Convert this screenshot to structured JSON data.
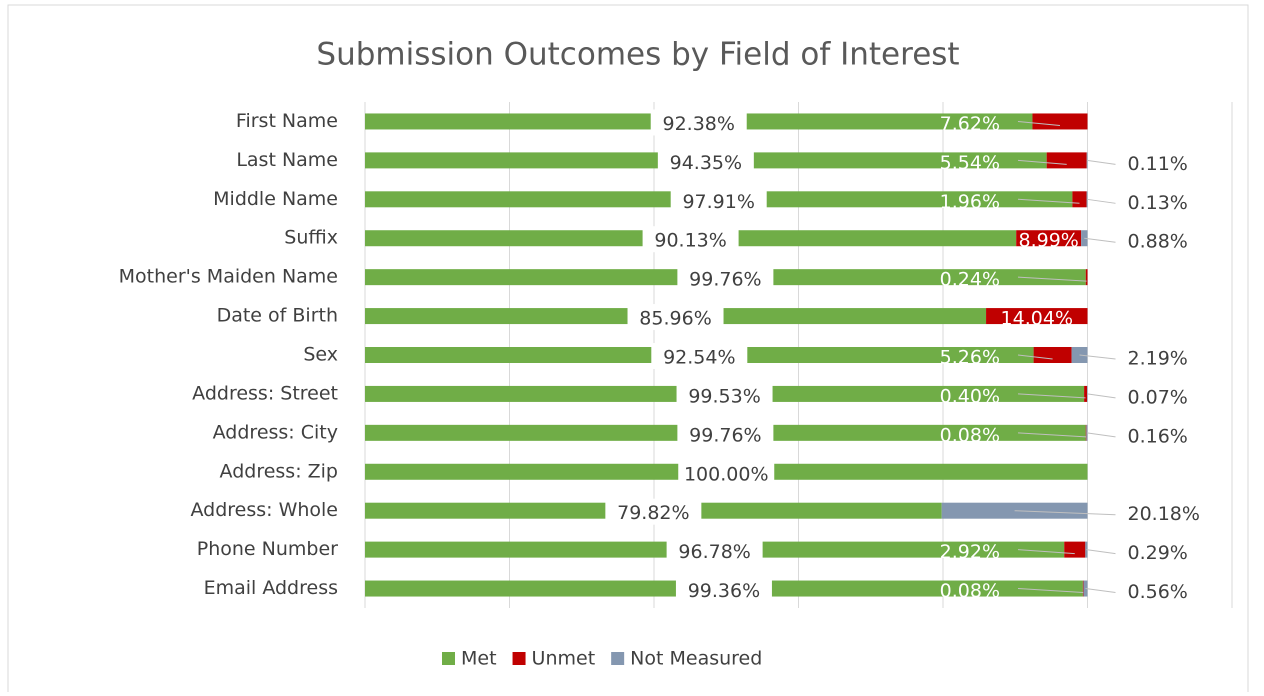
{
  "chart_data": {
    "type": "stacked_bar_horizontal",
    "title": "Submission Outcomes by Field of Interest",
    "categories": [
      "First Name",
      "Last Name",
      "Middle Name",
      "Suffix",
      "Mother's Maiden Name",
      "Date of Birth",
      "Sex",
      "Address: Street",
      "Address: City",
      "Address: Zip",
      "Address: Whole",
      "Phone Number",
      "Email Address"
    ],
    "series": [
      {
        "name": "Met",
        "color": "#70ad47",
        "values": [
          92.38,
          94.35,
          97.91,
          90.13,
          99.76,
          85.96,
          92.54,
          99.53,
          99.76,
          100,
          79.82,
          96.78,
          99.36
        ],
        "value_labels": [
          "92.38%",
          "94.35%",
          "97.91%",
          "90.13%",
          "99.76%",
          "85.96%",
          "92.54%",
          "99.53%",
          "99.76%",
          "100.00%",
          "79.82%",
          "96.78%",
          "99.36%"
        ]
      },
      {
        "name": "Unmet",
        "color": "#c00000",
        "values": [
          7.62,
          5.54,
          1.96,
          8.99,
          0.24,
          14.04,
          5.26,
          0.4,
          0.08,
          null,
          null,
          2.92,
          0.08
        ],
        "value_labels": [
          "7.62%",
          "5.54%",
          "1.96%",
          "8.99%",
          "0.24%",
          "14.04%",
          "5.26%",
          "0.40%",
          "0.08%",
          null,
          null,
          "2.92%",
          "0.08%"
        ]
      },
      {
        "name": "Not Measured",
        "color": "#8497b0",
        "values": [
          null,
          0.11,
          0.13,
          0.88,
          null,
          null,
          2.19,
          0.07,
          0.16,
          null,
          20.18,
          0.29,
          0.56
        ],
        "value_labels": [
          null,
          "0.11%",
          "0.13%",
          "0.88%",
          null,
          null,
          "2.19%",
          "0.07%",
          "0.16%",
          null,
          "20.18%",
          "0.29%",
          "0.56%"
        ]
      }
    ],
    "xlim": [
      0,
      120
    ],
    "xticks": [
      0,
      20,
      40,
      60,
      80,
      100,
      120
    ],
    "grid": true,
    "legend": "bottom"
  }
}
